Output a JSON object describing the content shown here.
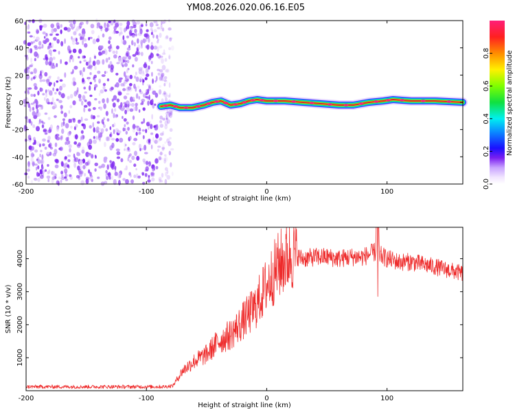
{
  "title": "YM08.2026.020.06.16.E05",
  "colors": {
    "snr_line": "#ee2b2b",
    "ridge": "#d6212b",
    "noise": "#7a1ff0"
  },
  "chart_data": [
    {
      "type": "heatmap",
      "name": "spectrogram",
      "xlabel": "Height of straight line (km)",
      "ylabel": "Frequency (Hz)",
      "xlim": [
        -200,
        163
      ],
      "ylim": [
        -60,
        60
      ],
      "x_ticks": [
        -200,
        -100,
        0,
        100
      ],
      "x_tick_labels": [
        "-200",
        "-100",
        "0",
        "100"
      ],
      "y_ticks": [
        -60,
        -40,
        -20,
        0,
        20,
        40,
        60
      ],
      "y_tick_labels": [
        "-60",
        "-40",
        "-20",
        "0",
        "20",
        "40",
        "60"
      ],
      "noise_region_x": [
        -200,
        -85
      ],
      "ridge_start_x": -88,
      "ridge_frequency": [
        [
          -88,
          -3
        ],
        [
          -80,
          -2
        ],
        [
          -72,
          -4
        ],
        [
          -62,
          -4
        ],
        [
          -52,
          -2
        ],
        [
          -45,
          0
        ],
        [
          -38,
          1
        ],
        [
          -30,
          -2
        ],
        [
          -22,
          -1
        ],
        [
          -15,
          1
        ],
        [
          -8,
          2
        ],
        [
          0,
          1
        ],
        [
          15,
          1
        ],
        [
          30,
          0
        ],
        [
          45,
          -1
        ],
        [
          60,
          -2
        ],
        [
          72,
          -2
        ],
        [
          85,
          0
        ],
        [
          97,
          1
        ],
        [
          105,
          2
        ],
        [
          120,
          1
        ],
        [
          140,
          1
        ],
        [
          163,
          0
        ]
      ],
      "colorbar": {
        "label": "Normalized spectral amplitude",
        "ticks": [
          0.0,
          0.2,
          0.4,
          0.6,
          0.8
        ],
        "tick_labels": [
          "0.0",
          "0.2",
          "0.4",
          "0.6",
          "0.8"
        ],
        "range": [
          0,
          1
        ]
      }
    },
    {
      "type": "line",
      "name": "snr",
      "xlabel": "Height of straight line (km)",
      "ylabel": "SNR (10 * v/v)",
      "xlim": [
        -200,
        163
      ],
      "ylim": [
        0,
        4950
      ],
      "x_ticks": [
        -200,
        -100,
        0,
        100
      ],
      "x_tick_labels": [
        "-200",
        "-100",
        "0",
        "100"
      ],
      "y_ticks": [
        1000,
        2000,
        3000,
        4000
      ],
      "y_tick_labels": [
        "1000",
        "2000",
        "3000",
        "4000"
      ],
      "series": [
        {
          "name": "SNR",
          "envelope_x": [
            -200,
            -150,
            -100,
            -85,
            -78,
            -70,
            -60,
            -50,
            -40,
            -30,
            -20,
            -10,
            0,
            10,
            20,
            30,
            40,
            50,
            60,
            70,
            80,
            90,
            100,
            110,
            120,
            140,
            163
          ],
          "envelope_y": [
            120,
            120,
            120,
            120,
            150,
            600,
            900,
            1100,
            1500,
            1700,
            2100,
            2500,
            3200,
            3800,
            4150,
            4000,
            4050,
            4050,
            4000,
            4050,
            4050,
            4200,
            4000,
            3900,
            3900,
            3750,
            3550
          ]
        }
      ]
    }
  ]
}
